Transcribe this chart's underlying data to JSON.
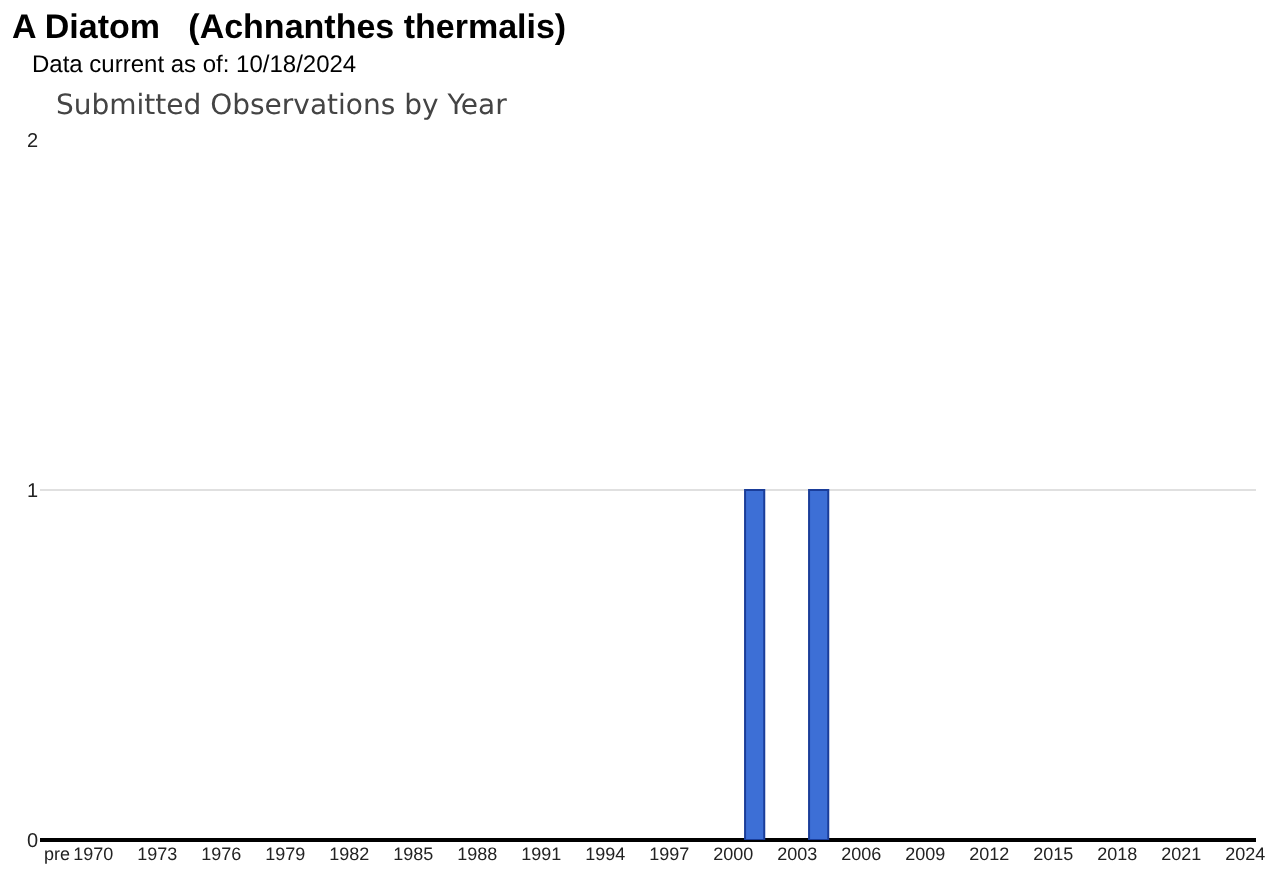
{
  "chart_data": {
    "type": "bar",
    "title": "A Diatom   (Achnanthes thermalis)",
    "subtitle": "Data current as of: 10/18/2024",
    "annotations": [
      "Submitted Observations by Year"
    ],
    "categories": [
      "pre",
      "1970",
      null,
      null,
      "1973",
      null,
      null,
      "1976",
      null,
      null,
      "1979",
      null,
      null,
      "1982",
      null,
      null,
      "1985",
      null,
      null,
      "1988",
      null,
      null,
      "1991",
      null,
      null,
      "1994",
      null,
      null,
      "1997",
      null,
      null,
      "2000",
      null,
      null,
      "2003",
      null,
      null,
      "2006",
      null,
      null,
      "2009",
      null,
      null,
      "2012",
      null,
      null,
      "2015",
      null,
      null,
      "2018",
      null,
      null,
      "2021",
      null,
      null,
      "2024"
    ],
    "values": [
      0,
      0,
      0,
      0,
      0,
      0,
      0,
      0,
      0,
      0,
      0,
      0,
      0,
      0,
      0,
      0,
      0,
      0,
      0,
      0,
      0,
      0,
      0,
      0,
      0,
      0,
      0,
      0,
      0,
      0,
      0,
      0,
      1,
      0,
      0,
      1,
      0,
      0,
      0,
      0,
      0,
      0,
      0,
      0,
      0,
      0,
      0,
      0,
      0,
      0,
      0,
      0,
      0,
      0,
      0,
      0
    ],
    "color": "#3d6fd6",
    "ylim": [
      0,
      2
    ],
    "yticks": [
      0,
      1,
      2
    ],
    "grid": "y",
    "legend": false
  }
}
